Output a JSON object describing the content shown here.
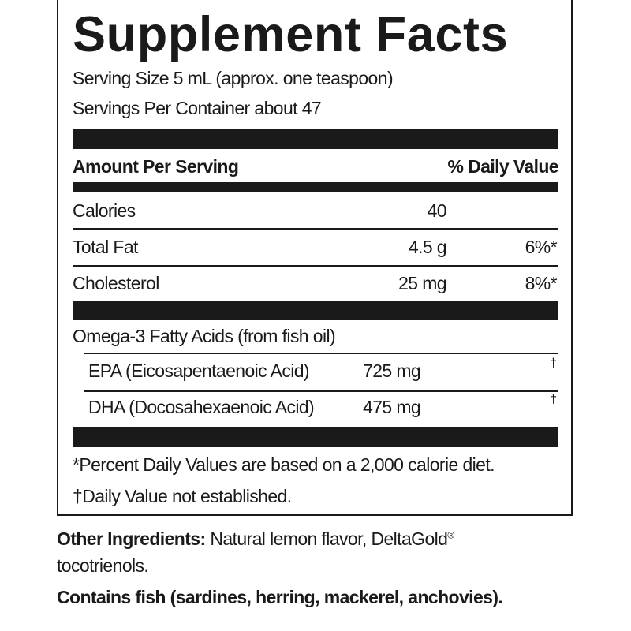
{
  "title": "Supplement Facts",
  "serving_size": "Serving Size 5 mL (approx. one teaspoon)",
  "servings_per_container": "Servings Per Container about 47",
  "header": {
    "amount": "Amount Per Serving",
    "dv": "% Daily Value"
  },
  "rows": [
    {
      "name": "Calories",
      "amount": "40",
      "dv": ""
    },
    {
      "name": "Total Fat",
      "amount": "4.5 g",
      "dv": "6%*"
    },
    {
      "name": "Cholesterol",
      "amount": "25 mg",
      "dv": "8%*"
    }
  ],
  "omega": {
    "label": "Omega-3 Fatty Acids (from fish oil)",
    "items": [
      {
        "name": "EPA (Eicosapentaenoic Acid)",
        "amount": "725 mg",
        "dv": "†"
      },
      {
        "name": "DHA (Docosahexaenoic Acid)",
        "amount": "475 mg",
        "dv": "†"
      }
    ]
  },
  "footnotes": [
    "*Percent Daily Values are based on a 2,000 calorie diet.",
    "†Daily Value not established."
  ],
  "other_ingredients": {
    "label": "Other Ingredients:",
    "text": " Natural lemon flavor, DeltaGold",
    "reg": "®",
    "text2": "tocotrienols."
  },
  "allergen": "Contains fish (sardines, herring, mackerel, anchovies)."
}
